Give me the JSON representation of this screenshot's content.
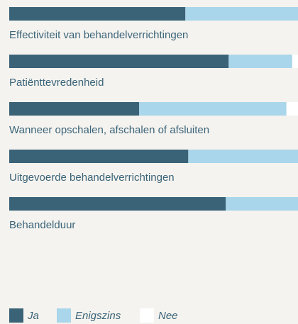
{
  "chart_data": {
    "type": "stacked_bar_horizontal",
    "categories": [
      "Effectiviteit van behandelverrichtingen",
      "Patiënttevredenheid",
      "Wanneer opschalen, afschalen of afsluiten",
      "Uitgevoerde behandelverrichtingen",
      "Behandelduur"
    ],
    "series": [
      {
        "name": "Ja",
        "color": "#3b6378",
        "values": [
          61,
          76,
          45,
          62,
          75
        ]
      },
      {
        "name": "Enigszins",
        "color": "#a9d6ea",
        "values": [
          39,
          22,
          51,
          38,
          25
        ]
      },
      {
        "name": "Nee",
        "color": "#ffffff",
        "values": [
          0,
          2,
          4,
          0,
          0
        ]
      }
    ],
    "xlim": [
      0,
      100
    ]
  }
}
